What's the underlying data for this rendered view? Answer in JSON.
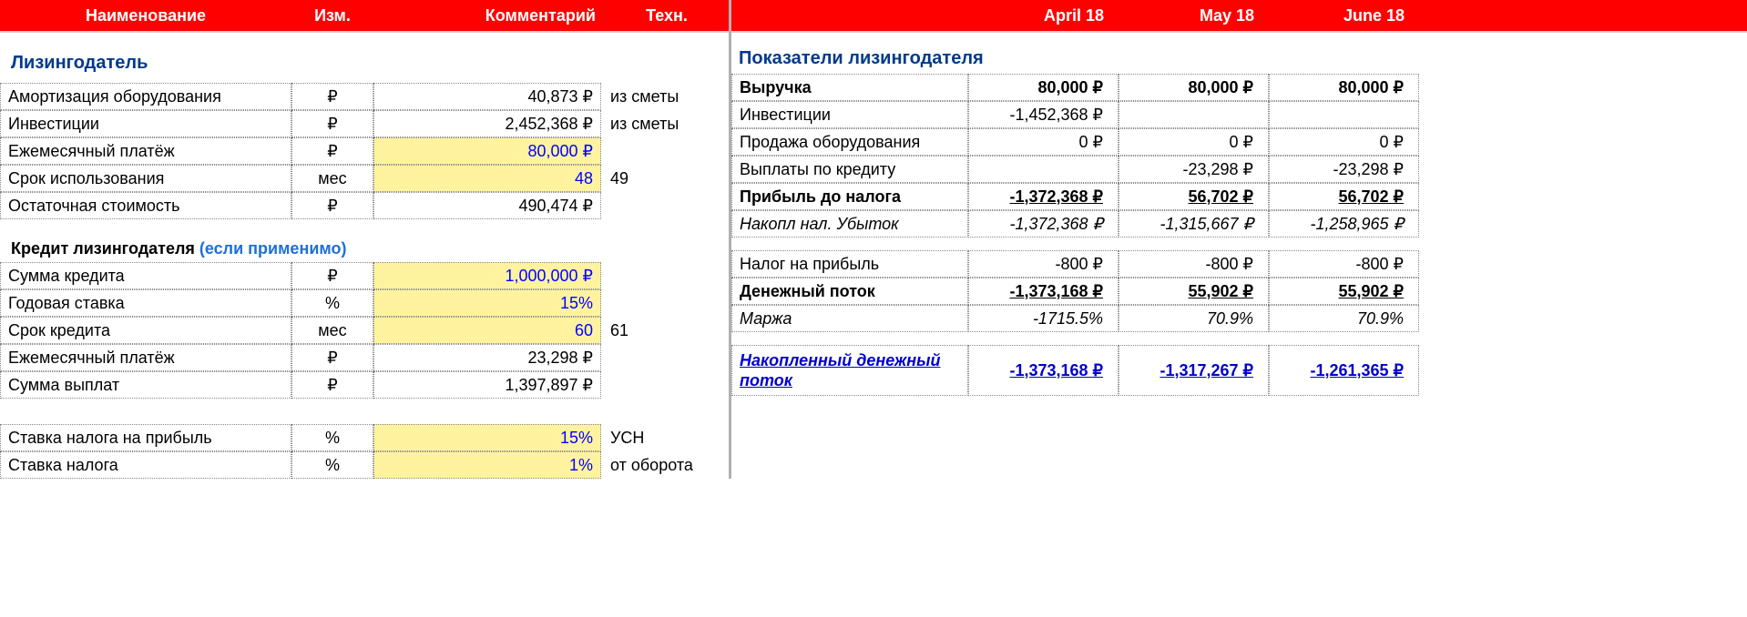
{
  "colors": {
    "header_bg": "#ff0000",
    "header_text": "#ffffff",
    "section_title": "#003a8c",
    "editable_bg": "#fff3a0",
    "editable_text": "#0000ff",
    "link": "#0000cc",
    "grid_border": "#888888"
  },
  "left_headers": {
    "name": "Наименование",
    "unit": "Изм.",
    "comment": "Комментарий",
    "tech": "Техн."
  },
  "right_headers": {
    "spacer": "",
    "apr": "April 18",
    "may": "May 18",
    "jun": "June 18"
  },
  "section_lessor": "Лизингодатель",
  "lessor_rows": [
    {
      "name": "Амортизация оборудования",
      "unit": "₽",
      "value": "40,873 ₽",
      "note": "из сметы",
      "editable": false
    },
    {
      "name": "Инвестиции",
      "unit": "₽",
      "value": "2,452,368 ₽",
      "note": "из сметы",
      "editable": false
    },
    {
      "name": "Ежемесячный платёж",
      "unit": "₽",
      "value": "80,000 ₽",
      "note": "",
      "editable": true
    },
    {
      "name": "Срок использования",
      "unit": "мес",
      "value": "48",
      "note": "49",
      "editable": true
    },
    {
      "name": "Остаточная стоимость",
      "unit": "₽",
      "value": "490,474 ₽",
      "note": "",
      "editable": false
    }
  ],
  "credit_title_main": "Кредит лизингодателя ",
  "credit_title_sub": "(если применимо)",
  "credit_rows": [
    {
      "name": "Сумма кредита",
      "unit": "₽",
      "value": "1,000,000 ₽",
      "note": "",
      "editable": true
    },
    {
      "name": "Годовая ставка",
      "unit": "%",
      "value": "15%",
      "note": "",
      "editable": true
    },
    {
      "name": "Срок кредита",
      "unit": "мес",
      "value": "60",
      "note": "61",
      "editable": true
    },
    {
      "name": "Ежемесячный платёж",
      "unit": "₽",
      "value": "23,298 ₽",
      "note": "",
      "editable": false
    },
    {
      "name": "Сумма выплат",
      "unit": "₽",
      "value": "1,397,897 ₽",
      "note": "",
      "editable": false
    }
  ],
  "tax_rows": [
    {
      "name": "Ставка налога на прибыль",
      "unit": "%",
      "value": "15%",
      "note": "УСН",
      "editable": true
    },
    {
      "name": "Ставка налога",
      "unit": "%",
      "value": "1%",
      "note": "от оборота",
      "editable": true
    }
  ],
  "right_section_title": "Показатели лизингодателя",
  "right_rows": [
    {
      "label": "Выручка",
      "style": "b",
      "apr": "80,000 ₽",
      "may": "80,000 ₽",
      "jun": "80,000 ₽",
      "vstyle": "b"
    },
    {
      "label": "Инвестиции",
      "style": "",
      "apr": "-1,452,368 ₽",
      "may": "",
      "jun": "",
      "vstyle": ""
    },
    {
      "label": "Продажа оборудования",
      "style": "",
      "apr": "0 ₽",
      "may": "0 ₽",
      "jun": "0 ₽",
      "vstyle": ""
    },
    {
      "label": "Выплаты по кредиту",
      "style": "",
      "apr": "",
      "may": "-23,298 ₽",
      "jun": "-23,298 ₽",
      "vstyle": ""
    },
    {
      "label": "Прибыль до налога",
      "style": "b",
      "apr": "-1,372,368 ₽",
      "may": "56,702 ₽",
      "jun": "56,702 ₽",
      "vstyle": "b u"
    },
    {
      "label": "Накопл нал. Убыток",
      "style": "i",
      "apr": "-1,372,368 ₽",
      "may": "-1,315,667 ₽",
      "jun": "-1,258,965 ₽",
      "vstyle": "i"
    }
  ],
  "right_rows2": [
    {
      "label": "Налог на прибыль",
      "style": "",
      "apr": "-800 ₽",
      "may": "-800 ₽",
      "jun": "-800 ₽",
      "vstyle": ""
    },
    {
      "label": "Денежный поток",
      "style": "b",
      "apr": "-1,373,168 ₽",
      "may": "55,902 ₽",
      "jun": "55,902 ₽",
      "vstyle": "b u"
    },
    {
      "label": "Маржа",
      "style": "i",
      "apr": "-1715.5%",
      "may": "70.9%",
      "jun": "70.9%",
      "vstyle": "i"
    }
  ],
  "cashflow": {
    "label": "Накопленный денежный поток",
    "apr": "-1,373,168 ₽",
    "may": "-1,317,267 ₽",
    "jun": "-1,261,365 ₽"
  }
}
